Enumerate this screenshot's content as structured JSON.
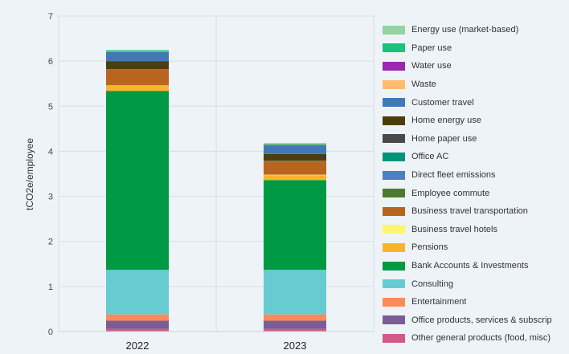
{
  "chart_data": {
    "type": "bar",
    "stacked": true,
    "categories": [
      "2022",
      "2023"
    ],
    "ylabel": "tCO2e/employee",
    "xlabel": "",
    "ylim": [
      0,
      7
    ],
    "yticks": [
      0,
      1,
      2,
      3,
      4,
      5,
      6,
      7
    ],
    "grid": true,
    "legend_position": "right",
    "series": [
      {
        "name": "Other general products (food, misc)",
        "color": "#d4578a",
        "values": [
          0.06,
          0.06
        ]
      },
      {
        "name": "Office products, services & subscrip",
        "color": "#7b5c95",
        "values": [
          0.18,
          0.18
        ]
      },
      {
        "name": "Entertainment",
        "color": "#ff8a5b",
        "values": [
          0.14,
          0.14
        ]
      },
      {
        "name": "Consulting",
        "color": "#66ccd1",
        "values": [
          0.99,
          0.99
        ]
      },
      {
        "name": "Bank Accounts & Investments",
        "color": "#009a44",
        "values": [
          3.97,
          1.99
        ]
      },
      {
        "name": "Pensions",
        "color": "#f9b42d",
        "values": [
          0.11,
          0.11
        ]
      },
      {
        "name": "Business travel hotels",
        "color": "#fff66b",
        "values": [
          0.01,
          0.01
        ]
      },
      {
        "name": "Business travel transportation",
        "color": "#b8661f",
        "values": [
          0.35,
          0.3
        ]
      },
      {
        "name": "Employee commute",
        "color": "#4c7a2e",
        "values": [
          0.01,
          0.01
        ]
      },
      {
        "name": "Direct fleet emissions",
        "color": "#4a7fc1",
        "values": [
          0.0,
          0.0
        ]
      },
      {
        "name": "Office AC",
        "color": "#00957a",
        "values": [
          0.0,
          0.0
        ]
      },
      {
        "name": "Home paper use",
        "color": "#4a4a4a",
        "values": [
          0.0,
          0.0
        ]
      },
      {
        "name": "Home energy use",
        "color": "#4a3d10",
        "values": [
          0.18,
          0.15
        ]
      },
      {
        "name": "Customer travel",
        "color": "#4279b5",
        "values": [
          0.21,
          0.2
        ]
      },
      {
        "name": "Waste",
        "color": "#ffbb70",
        "values": [
          0.01,
          0.01
        ]
      },
      {
        "name": "Water use",
        "color": "#9c27b0",
        "values": [
          0.0,
          0.0
        ]
      },
      {
        "name": "Paper use",
        "color": "#16c47e",
        "values": [
          0.02,
          0.02
        ]
      },
      {
        "name": "Energy use (market-based)",
        "color": "#8fd6a0",
        "values": [
          0.01,
          0.01
        ]
      }
    ],
    "legend_order": [
      "Energy use (market-based)",
      "Paper use",
      "Water use",
      "Waste",
      "Customer travel",
      "Home energy use",
      "Home paper use",
      "Office AC",
      "Direct fleet emissions",
      "Employee commute",
      "Business travel transportation",
      "Business travel hotels",
      "Pensions",
      "Bank Accounts & Investments",
      "Consulting",
      "Entertainment",
      "Office products, services & subscrip",
      "Other general products (food, misc)"
    ]
  }
}
